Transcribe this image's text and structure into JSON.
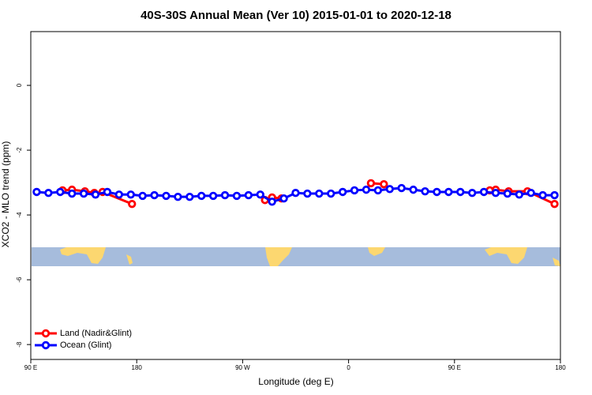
{
  "chart_data": {
    "type": "line",
    "title": "40S-30S Annual Mean (Ver 10)   2015-01-01 to 2020-12-18",
    "x_label": "Longitude (deg E)",
    "y_label": "XCO2 - MLO trend (ppm)",
    "xlim": [
      90,
      540
    ],
    "ylim": [
      -8.46,
      1.66
    ],
    "xticks": [
      {
        "value": 90,
        "label": "90 E"
      },
      {
        "value": 180,
        "label": "180"
      },
      {
        "value": 270,
        "label": "90 W"
      },
      {
        "value": 360,
        "label": "0"
      },
      {
        "value": 450,
        "label": "90 E"
      },
      {
        "value": 540,
        "label": "180"
      }
    ],
    "yticks": [
      0,
      -2,
      -4,
      -6,
      -8
    ],
    "grid": false,
    "legend": "bottom-left",
    "series": [
      {
        "name": "Land (Nadir&Glint)",
        "color": "#ff0000",
        "x": [
          117,
          125,
          136,
          144,
          151,
          176,
          null,
          289,
          295,
          303,
          null,
          379,
          390,
          null,
          480,
          485,
          496,
          512,
          535
        ],
        "values": [
          -3.24,
          -3.22,
          -3.27,
          -3.32,
          -3.29,
          -3.66,
          null,
          -3.54,
          -3.46,
          -3.49,
          null,
          -3.02,
          -3.05,
          null,
          -3.24,
          -3.22,
          -3.27,
          -3.27,
          -3.66
        ]
      },
      {
        "name": "Ocean (Glint)",
        "color": "#0000ff",
        "x": [
          95,
          105,
          115,
          125,
          135,
          145,
          155,
          165,
          175,
          185,
          195,
          205,
          215,
          225,
          235,
          245,
          255,
          265,
          275,
          285,
          295,
          305,
          315,
          325,
          335,
          345,
          355,
          365,
          375,
          385,
          395,
          405,
          415,
          425,
          435,
          445,
          455,
          465,
          475,
          485,
          495,
          505,
          515,
          525,
          535
        ],
        "values": [
          -3.29,
          -3.32,
          -3.29,
          -3.34,
          -3.34,
          -3.37,
          -3.29,
          -3.37,
          -3.37,
          -3.41,
          -3.39,
          -3.41,
          -3.44,
          -3.44,
          -3.41,
          -3.41,
          -3.39,
          -3.41,
          -3.39,
          -3.37,
          -3.59,
          -3.49,
          -3.32,
          -3.34,
          -3.34,
          -3.34,
          -3.29,
          -3.24,
          -3.22,
          -3.24,
          -3.2,
          -3.17,
          -3.22,
          -3.27,
          -3.29,
          -3.29,
          -3.29,
          -3.32,
          -3.29,
          -3.32,
          -3.34,
          -3.37,
          -3.32,
          -3.39,
          -3.39
        ]
      }
    ]
  }
}
